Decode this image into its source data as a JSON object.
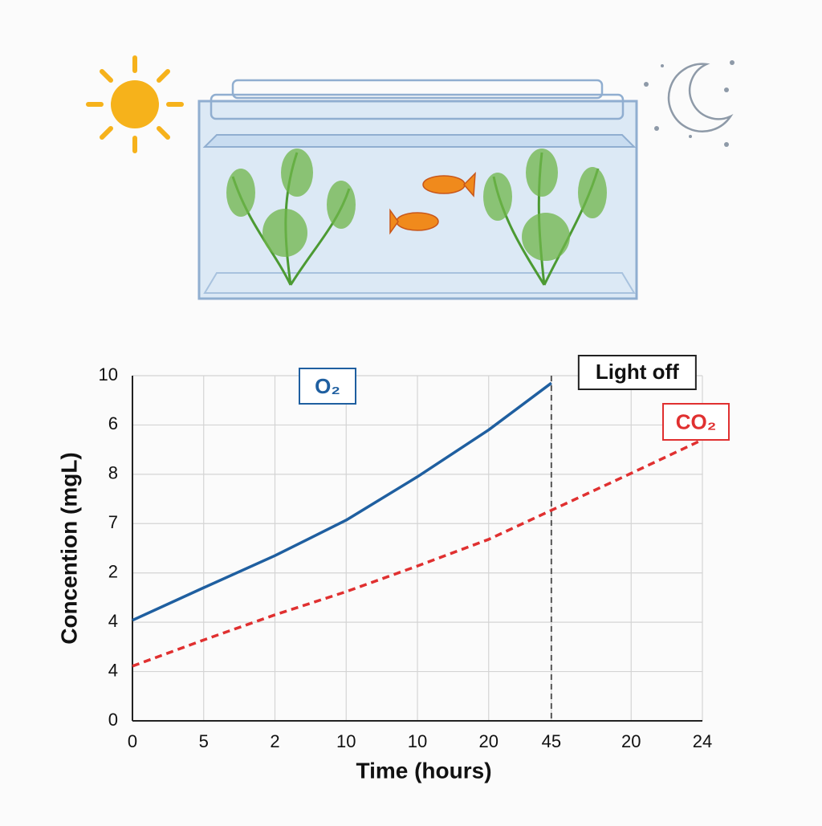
{
  "chart_data": {
    "type": "line",
    "xlabel": "Time (hours)",
    "ylabel": "Concention (mgL)",
    "xlim": [
      0,
      8
    ],
    "xticks": [
      0,
      {
        "value": 1,
        "label": "5"
      },
      {
        "value": 2,
        "label": "2"
      },
      {
        "value": 3,
        "label": "10"
      },
      {
        "value": 4,
        "label": "10"
      },
      {
        "value": 5,
        "label": "20"
      },
      {
        "value": 5.88,
        "label": "45"
      },
      {
        "value": 7,
        "label": "20"
      },
      {
        "value": 8,
        "label": "24"
      }
    ],
    "ylim": [
      0,
      7
    ],
    "yticks": [
      0,
      {
        "value": 1,
        "label": "4"
      },
      {
        "value": 2,
        "label": "4"
      },
      {
        "value": 3,
        "label": "2"
      },
      {
        "value": 4,
        "label": "7"
      },
      {
        "value": 5,
        "label": "8"
      },
      {
        "value": 6,
        "label": "6"
      },
      {
        "value": 7,
        "label": "10"
      }
    ],
    "grid": true,
    "series": [
      {
        "name": "O₂",
        "color": "#1f5fa0",
        "dashed": false,
        "x": [
          0,
          1,
          2,
          3,
          4,
          5,
          5.88
        ],
        "values": [
          2.04,
          2.7,
          3.35,
          4.07,
          4.95,
          5.9,
          6.85
        ]
      },
      {
        "name": "CO₂",
        "color": "#e03030",
        "dashed": true,
        "x": [
          0,
          1,
          2,
          3,
          4,
          5,
          5.88,
          7,
          8
        ],
        "values": [
          1.11,
          1.64,
          2.15,
          2.62,
          3.14,
          3.68,
          4.27,
          5.02,
          5.7
        ]
      }
    ],
    "annotations": [
      {
        "text": "Light off",
        "x": 5.88
      }
    ]
  }
}
